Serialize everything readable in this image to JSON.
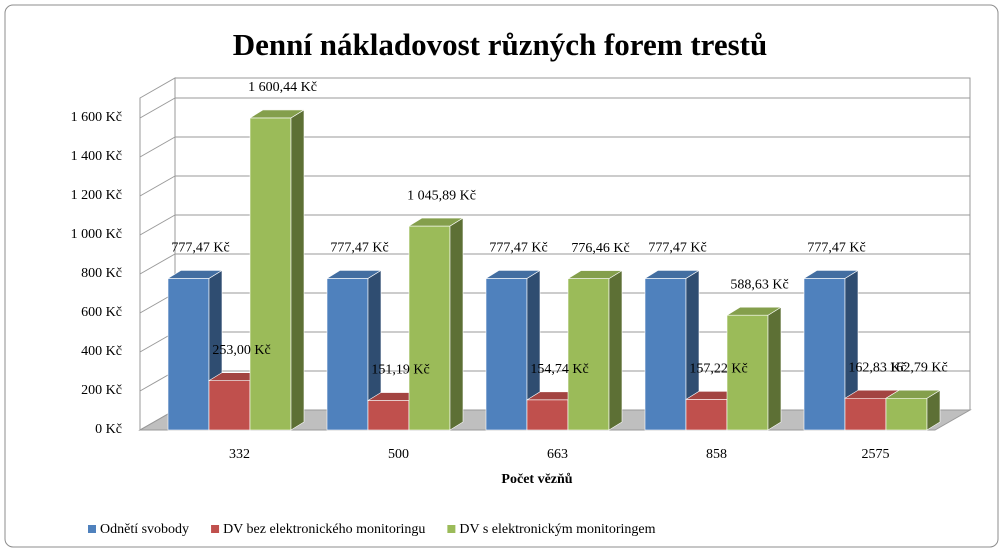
{
  "chart_data": {
    "type": "bar3d",
    "title": "Denní nákladovost různých forem trestů",
    "x_label": "Počet vězňů",
    "categories": [
      "332",
      "500",
      "663",
      "858",
      "2575"
    ],
    "series": [
      {
        "name": "Odnětí svobody",
        "color": "#4f81bd",
        "values": [
          777.47,
          777.47,
          777.47,
          777.47,
          777.47
        ],
        "value_labels": [
          "777,47 Kč",
          "777,47 Kč",
          "777,47 Kč",
          "777,47 Kč",
          "777,47 Kč"
        ]
      },
      {
        "name": "DV bez elektronického monitoringu",
        "color": "#c0504d",
        "values": [
          253.0,
          151.19,
          154.74,
          157.22,
          162.83
        ],
        "value_labels": [
          "253,00 Kč",
          "151,19 Kč",
          "154,74 Kč",
          "157,22 Kč",
          "162,83 Kč"
        ]
      },
      {
        "name": "DV s elektronickým monitoringem",
        "color": "#9bbb59",
        "values": [
          1600.44,
          1045.89,
          776.46,
          588.63,
          162.79
        ],
        "value_labels": [
          "1 600,44 Kč",
          "1 045,89 Kč",
          "776,46 Kč",
          "588,63 Kč",
          "162,79 Kč"
        ]
      }
    ],
    "ylim": [
      0,
      1600
    ],
    "yticks": [
      {
        "value": 0,
        "label": "0 Kč"
      },
      {
        "value": 200,
        "label": "200 Kč"
      },
      {
        "value": 400,
        "label": "400 Kč"
      },
      {
        "value": 600,
        "label": "600 Kč"
      },
      {
        "value": 800,
        "label": "800 Kč"
      },
      {
        "value": 1000,
        "label": "1 000 Kč"
      },
      {
        "value": 1200,
        "label": "1 200 Kč"
      },
      {
        "value": 1400,
        "label": "1 400 Kč"
      },
      {
        "value": 1600,
        "label": "1 600 Kč"
      }
    ],
    "grid": true,
    "legend": "bottom"
  }
}
